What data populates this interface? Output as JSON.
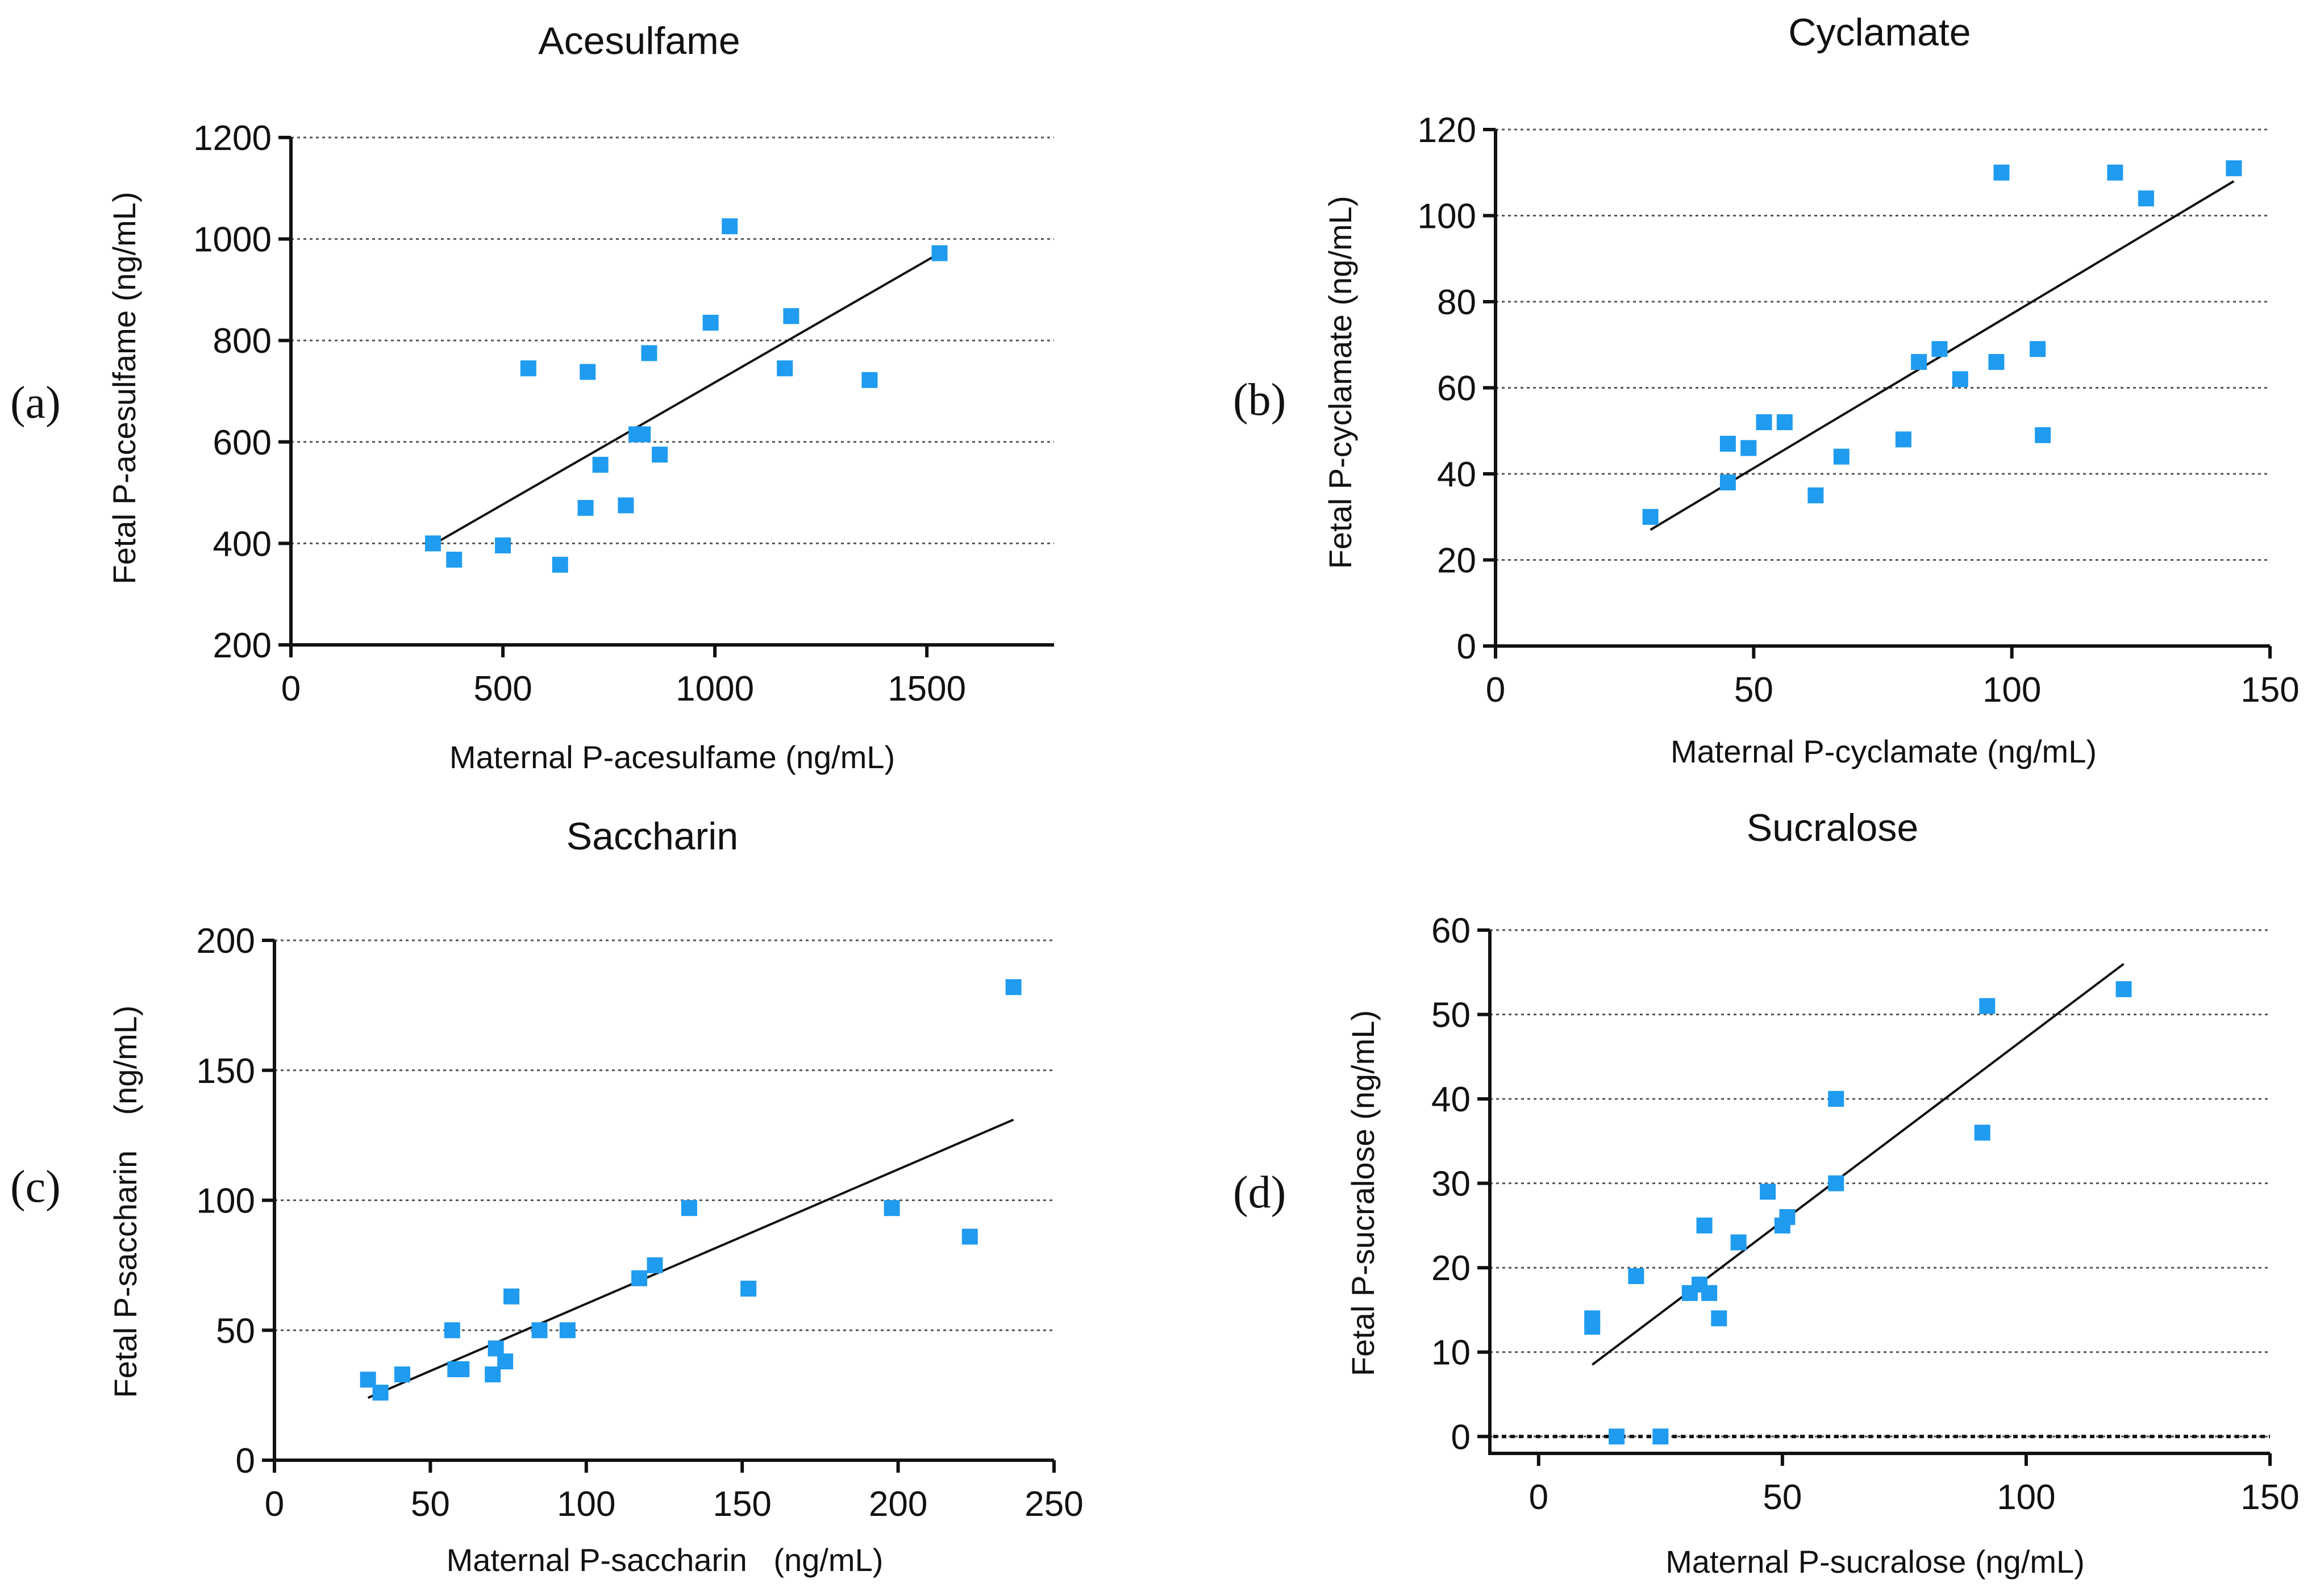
{
  "chart_data": [
    {
      "type": "scatter",
      "panel_label": "(a)",
      "title": "Acesulfame",
      "xlabel": "Maternal P-acesulfame (ng/mL)",
      "ylabel": "Fetal P-acesulfame (ng/mL)",
      "xlim": [
        0,
        1800
      ],
      "ylim": [
        200,
        1200
      ],
      "xticks": [
        0,
        500,
        1000,
        1500
      ],
      "yticks": [
        200,
        400,
        600,
        800,
        1000,
        1200
      ],
      "grid": "horizontal dotted",
      "points": [
        [
          335,
          400
        ],
        [
          385,
          368
        ],
        [
          500,
          396
        ],
        [
          560,
          745
        ],
        [
          635,
          358
        ],
        [
          695,
          470
        ],
        [
          700,
          738
        ],
        [
          730,
          555
        ],
        [
          790,
          475
        ],
        [
          815,
          615
        ],
        [
          830,
          615
        ],
        [
          845,
          775
        ],
        [
          870,
          575
        ],
        [
          990,
          835
        ],
        [
          1035,
          1025
        ],
        [
          1165,
          745
        ],
        [
          1180,
          848
        ],
        [
          1365,
          722
        ],
        [
          1530,
          972
        ]
      ],
      "fit": [
        [
          340,
          400
        ],
        [
          1530,
          972
        ]
      ]
    },
    {
      "type": "scatter",
      "panel_label": "(b)",
      "title": "Cyclamate",
      "xlabel": "Maternal P-cyclamate (ng/mL)",
      "ylabel": "Fetal P-cyclamate (ng/mL)",
      "xlim": [
        0,
        150
      ],
      "ylim": [
        0,
        120
      ],
      "xticks": [
        0,
        50,
        100,
        150
      ],
      "yticks": [
        0,
        20,
        40,
        60,
        80,
        100,
        120
      ],
      "grid": "horizontal dotted",
      "points": [
        [
          30,
          30
        ],
        [
          45,
          47
        ],
        [
          45,
          38
        ],
        [
          49,
          46
        ],
        [
          52,
          52
        ],
        [
          56,
          52
        ],
        [
          62,
          35
        ],
        [
          67,
          44
        ],
        [
          79,
          48
        ],
        [
          82,
          66
        ],
        [
          86,
          69
        ],
        [
          90,
          62
        ],
        [
          97,
          66
        ],
        [
          98,
          110
        ],
        [
          105,
          69
        ],
        [
          106,
          49
        ],
        [
          120,
          110
        ],
        [
          126,
          104
        ],
        [
          143,
          111
        ]
      ],
      "fit": [
        [
          30,
          27
        ],
        [
          143,
          108
        ]
      ]
    },
    {
      "type": "scatter",
      "panel_label": "(c)",
      "title": "Saccharin",
      "xlabel": "Maternal P-saccharin   (ng/mL)",
      "ylabel": "Fetal P-saccharin    (ng/mL)",
      "xlim": [
        0,
        250
      ],
      "ylim": [
        0,
        200
      ],
      "xticks": [
        0,
        50,
        100,
        150,
        200,
        250
      ],
      "yticks": [
        0,
        50,
        100,
        150,
        200
      ],
      "grid": "horizontal dotted",
      "points": [
        [
          30,
          31
        ],
        [
          34,
          26
        ],
        [
          41,
          33
        ],
        [
          57,
          50
        ],
        [
          58,
          35
        ],
        [
          60,
          35
        ],
        [
          70,
          33
        ],
        [
          71,
          43
        ],
        [
          74,
          38
        ],
        [
          76,
          63
        ],
        [
          85,
          50
        ],
        [
          94,
          50
        ],
        [
          117,
          70
        ],
        [
          122,
          75
        ],
        [
          133,
          97
        ],
        [
          152,
          66
        ],
        [
          198,
          97
        ],
        [
          223,
          86
        ],
        [
          237,
          182
        ]
      ],
      "fit": [
        [
          30,
          24
        ],
        [
          237,
          131
        ]
      ]
    },
    {
      "type": "scatter",
      "panel_label": "(d)",
      "title": "Sucralose",
      "xlabel": "Maternal P-sucralose (ng/mL)",
      "ylabel": "Fetal P-sucralose (ng/mL)",
      "xlim": [
        -10,
        150
      ],
      "ylim": [
        -2,
        60
      ],
      "xticks": [
        0,
        50,
        100,
        150
      ],
      "yticks": [
        0,
        10,
        20,
        30,
        40,
        50,
        60
      ],
      "grid": "horizontal dotted",
      "points": [
        [
          11,
          14
        ],
        [
          11,
          13
        ],
        [
          16,
          0
        ],
        [
          20,
          19
        ],
        [
          25,
          0
        ],
        [
          31,
          17
        ],
        [
          33,
          18
        ],
        [
          34,
          25
        ],
        [
          35,
          17
        ],
        [
          37,
          14
        ],
        [
          41,
          23
        ],
        [
          47,
          29
        ],
        [
          50,
          25
        ],
        [
          51,
          26
        ],
        [
          61,
          40
        ],
        [
          61,
          30
        ],
        [
          91,
          36
        ],
        [
          92,
          51
        ],
        [
          120,
          53
        ]
      ],
      "fit": [
        [
          11,
          8.5
        ],
        [
          120,
          56
        ]
      ]
    }
  ]
}
